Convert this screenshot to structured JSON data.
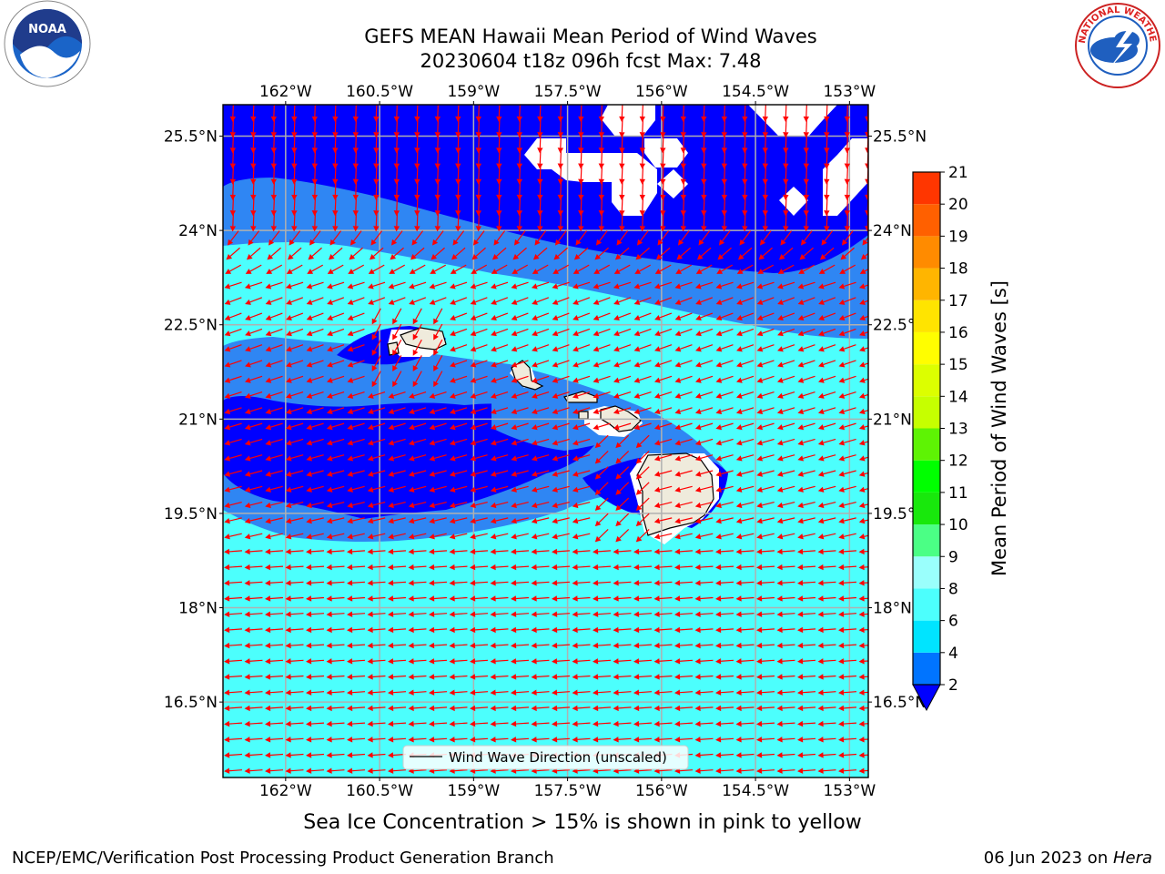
{
  "title": {
    "line1": "GEFS MEAN Hawaii Mean Period of Wind Waves",
    "line2": "20230604 t18z 096h fcst   Max: 7.48"
  },
  "logos": {
    "left_icon": "noaa-logo-icon",
    "right_icon": "nws-logo-icon",
    "nws_ring_text": "NATIONAL WEATHER SERVICE"
  },
  "axes": {
    "lon_labels": [
      "162°W",
      "160.5°W",
      "159°W",
      "157.5°W",
      "156°W",
      "154.5°W",
      "153°W"
    ],
    "lat_labels": [
      "25.5°N",
      "24°N",
      "22.5°N",
      "21°N",
      "19.5°N",
      "18°N",
      "16.5°N"
    ],
    "lon_range": [
      -163.0,
      -152.7
    ],
    "lat_range": [
      15.3,
      26.0
    ]
  },
  "colorbar": {
    "label": "Mean Period of Wind Waves [s]",
    "ticks": [
      "2",
      "4",
      "6",
      "8",
      "9",
      "10",
      "11",
      "12",
      "13",
      "14",
      "15",
      "16",
      "17",
      "18",
      "19",
      "20",
      "21"
    ],
    "colors": [
      "#0074ff",
      "#00e4ff",
      "#4cfffd",
      "#9afffc",
      "#4bff85",
      "#18e80c",
      "#00ff00",
      "#5ef304",
      "#c6ff00",
      "#dcff00",
      "#fffe00",
      "#ffe400",
      "#ffb500",
      "#ff8b00",
      "#ff6000",
      "#ff3600",
      "#ff0000"
    ],
    "under_color": "#0000ff"
  },
  "map_colors": {
    "band_0_2": "#0000ff",
    "band_2_4": "#2f86f3",
    "band_4_6": "#00f4f4",
    "band_6_8": "#4cfffd",
    "land": "#efebdc",
    "arrow": "#ff0000",
    "grid": "#b0b0b0"
  },
  "legend": {
    "label": "Wind Wave Direction (unscaled)"
  },
  "footer": {
    "sea_ice": "Sea Ice Concentration > 15% is shown in pink to yellow",
    "credit": "NCEP/EMC/Verification Post Processing Product Generation Branch",
    "date_prefix": "06 Jun 2023 on ",
    "date_host": "Hera"
  }
}
